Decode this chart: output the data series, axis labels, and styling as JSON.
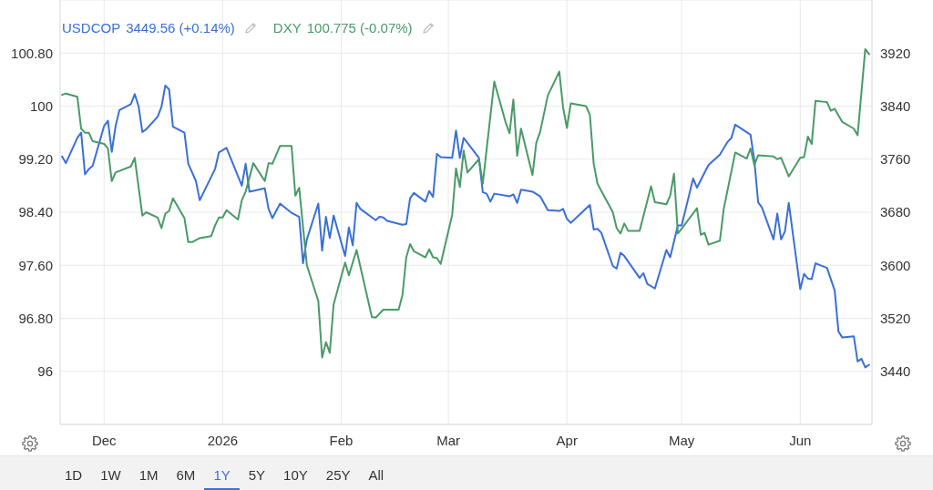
{
  "chart_data": {
    "type": "line",
    "legend": "top left",
    "grid": true,
    "xlim": [
      "2025-11-19T12:00",
      "2026-06-19T18:00"
    ],
    "xticks": [
      {
        "value": "2025-12-01",
        "label": "Dec"
      },
      {
        "value": "2026-01-01",
        "label": "2026"
      },
      {
        "value": "2026-02-01",
        "label": "Feb"
      },
      {
        "value": "2026-03-01",
        "label": "Mar"
      },
      {
        "value": "2026-04-01",
        "label": "Apr"
      },
      {
        "value": "2026-05-01",
        "label": "May"
      },
      {
        "value": "2026-06-01",
        "label": "Jun"
      }
    ],
    "ylim": [
      95.2,
      101.6
    ],
    "yticks": [
      96,
      {
        "value": 96.8,
        "label": "96.80"
      },
      {
        "value": 97.6,
        "label": "97.60"
      },
      {
        "value": 98.4,
        "label": "98.40"
      },
      {
        "value": 99.2,
        "label": "99.20"
      },
      100,
      {
        "value": 100.8,
        "label": "100.80"
      }
    ],
    "y2lim": [
      3360,
      4000
    ],
    "y2ticks": [
      3440,
      3520,
      3600,
      3680,
      3760,
      3840,
      3920
    ],
    "series": [
      {
        "name": "USDCOP",
        "color": "#3a6fd8",
        "axis": "y2",
        "x": [
          "2025-11-20",
          "2025-11-21",
          "2025-11-24",
          "2025-11-25",
          "2025-11-26",
          "2025-11-27",
          "2025-11-28",
          "2025-12-01",
          "2025-12-02",
          "2025-12-03",
          "2025-12-04",
          "2025-12-05",
          "2025-12-08",
          "2025-12-09",
          "2025-12-10",
          "2025-12-11",
          "2025-12-12",
          "2025-12-15",
          "2025-12-16",
          "2025-12-17",
          "2025-12-18",
          "2025-12-19",
          "2025-12-22",
          "2025-12-23",
          "2025-12-25",
          "2025-12-26",
          "2025-12-30",
          "2025-12-31",
          "2026-01-02",
          "2026-01-06",
          "2026-01-07",
          "2026-01-08",
          "2026-01-12",
          "2026-01-13",
          "2026-01-14",
          "2026-01-16",
          "2026-01-19",
          "2026-01-21",
          "2026-01-22",
          "2026-01-23",
          "2026-01-26",
          "2026-01-27",
          "2026-01-28",
          "2026-01-29",
          "2026-01-30",
          "2026-02-02",
          "2026-02-03",
          "2026-02-04",
          "2026-02-05",
          "2026-02-06",
          "2026-02-10",
          "2026-02-11",
          "2026-02-12",
          "2026-02-13",
          "2026-02-17",
          "2026-02-18",
          "2026-02-19",
          "2026-02-20",
          "2026-02-23",
          "2026-02-24",
          "2026-02-25",
          "2026-02-26",
          "2026-02-27",
          "2026-03-02",
          "2026-03-03",
          "2026-03-04",
          "2026-03-05",
          "2026-03-09",
          "2026-03-10",
          "2026-03-11",
          "2026-03-12",
          "2026-03-13",
          "2026-03-17",
          "2026-03-18",
          "2026-03-19",
          "2026-03-20",
          "2026-03-23",
          "2026-03-25",
          "2026-03-27",
          "2026-03-30",
          "2026-03-31",
          "2026-04-01",
          "2026-04-02",
          "2026-04-07",
          "2026-04-08",
          "2026-04-09",
          "2026-04-10",
          "2026-04-13",
          "2026-04-14",
          "2026-04-15",
          "2026-04-16",
          "2026-04-20",
          "2026-04-21",
          "2026-04-22",
          "2026-04-24",
          "2026-04-27",
          "2026-04-28",
          "2026-04-30",
          "2026-05-01",
          "2026-05-04",
          "2026-05-05",
          "2026-05-08",
          "2026-05-11",
          "2026-05-13",
          "2026-05-14",
          "2026-05-15",
          "2026-05-19",
          "2026-05-20",
          "2026-05-21",
          "2026-05-22",
          "2026-05-25",
          "2026-05-26",
          "2026-05-27",
          "2026-05-28",
          "2026-05-29",
          "2026-06-01",
          "2026-06-02",
          "2026-06-03",
          "2026-06-04",
          "2026-06-05",
          "2026-06-08",
          "2026-06-10",
          "2026-06-11",
          "2026-06-12",
          "2026-06-15",
          "2026-06-16",
          "2026-06-17",
          "2026-06-18",
          "2026-06-19"
        ],
        "values": [
          3764,
          3754,
          3792,
          3800,
          3737,
          3745,
          3750,
          3810,
          3818,
          3771,
          3810,
          3834,
          3843,
          3858,
          3840,
          3801,
          3805,
          3824,
          3839,
          3871,
          3865,
          3809,
          3800,
          3753,
          3727,
          3698,
          3745,
          3770,
          3777,
          3720,
          3753,
          3711,
          3716,
          3685,
          3671,
          3693,
          3679,
          3673,
          3603,
          3639,
          3693,
          3622,
          3673,
          3641,
          3675,
          3614,
          3657,
          3630,
          3694,
          3685,
          3668,
          3673,
          3672,
          3667,
          3661,
          3662,
          3701,
          3709,
          3696,
          3712,
          3703,
          3768,
          3763,
          3762,
          3803,
          3762,
          3792,
          3762,
          3710,
          3708,
          3696,
          3708,
          3704,
          3707,
          3694,
          3714,
          3711,
          3704,
          3683,
          3682,
          3685,
          3670,
          3664,
          3691,
          3654,
          3655,
          3649,
          3599,
          3595,
          3619,
          3614,
          3581,
          3588,
          3572,
          3565,
          3623,
          3612,
          3660,
          3660,
          3731,
          3717,
          3751,
          3767,
          3786,
          3792,
          3812,
          3797,
          3758,
          3695,
          3687,
          3639,
          3678,
          3639,
          3651,
          3694,
          3564,
          3587,
          3580,
          3579,
          3603,
          3596,
          3562,
          3500,
          3491,
          3493,
          3455,
          3459,
          3446,
          3450
        ]
      },
      {
        "name": "DXY",
        "color": "#4a9a66",
        "x": [
          "2025-11-20",
          "2025-11-21",
          "2025-11-24",
          "2025-11-25",
          "2025-11-26",
          "2025-11-27",
          "2025-11-28",
          "2025-12-01",
          "2025-12-02",
          "2025-12-03",
          "2025-12-04",
          "2025-12-08",
          "2025-12-09",
          "2025-12-11",
          "2025-12-12",
          "2025-12-15",
          "2025-12-16",
          "2025-12-17",
          "2025-12-18",
          "2025-12-19",
          "2025-12-22",
          "2025-12-23",
          "2025-12-24",
          "2025-12-26",
          "2025-12-29",
          "2025-12-30",
          "2025-12-31",
          "2026-01-01",
          "2026-01-02",
          "2026-01-05",
          "2026-01-06",
          "2026-01-07",
          "2026-01-09",
          "2026-01-12",
          "2026-01-13",
          "2026-01-14",
          "2026-01-16",
          "2026-01-19",
          "2026-01-20",
          "2026-01-21",
          "2026-01-23",
          "2026-01-26",
          "2026-01-27",
          "2026-01-28",
          "2026-01-29",
          "2026-01-30",
          "2026-02-02",
          "2026-02-03",
          "2026-02-05",
          "2026-02-09",
          "2026-02-10",
          "2026-02-12",
          "2026-02-16",
          "2026-02-17",
          "2026-02-18",
          "2026-02-19",
          "2026-02-20",
          "2026-02-23",
          "2026-02-24",
          "2026-02-25",
          "2026-02-26",
          "2026-02-27",
          "2026-03-02",
          "2026-03-03",
          "2026-03-04",
          "2026-03-05",
          "2026-03-06",
          "2026-03-09",
          "2026-03-10",
          "2026-03-13",
          "2026-03-16",
          "2026-03-17",
          "2026-03-18",
          "2026-03-19",
          "2026-03-20",
          "2026-03-23",
          "2026-03-24",
          "2026-03-25",
          "2026-03-27",
          "2026-03-30",
          "2026-03-31",
          "2026-04-01",
          "2026-04-02",
          "2026-04-06",
          "2026-04-07",
          "2026-04-08",
          "2026-04-09",
          "2026-04-13",
          "2026-04-14",
          "2026-04-15",
          "2026-04-16",
          "2026-04-17",
          "2026-04-20",
          "2026-04-23",
          "2026-04-24",
          "2026-04-27",
          "2026-04-28",
          "2026-04-29",
          "2026-04-30",
          "2026-05-01",
          "2026-05-05",
          "2026-05-06",
          "2026-05-07",
          "2026-05-08",
          "2026-05-11",
          "2026-05-12",
          "2026-05-15",
          "2026-05-18",
          "2026-05-19",
          "2026-05-20",
          "2026-05-21",
          "2026-05-25",
          "2026-05-26",
          "2026-05-27",
          "2026-05-29",
          "2026-06-01",
          "2026-06-02",
          "2026-06-03",
          "2026-06-04",
          "2026-06-05",
          "2026-06-08",
          "2026-06-09",
          "2026-06-10",
          "2026-06-12",
          "2026-06-15",
          "2026-06-16",
          "2026-06-18",
          "2026-06-19"
        ],
        "values": [
          100.17,
          100.19,
          100.14,
          99.66,
          99.6,
          99.6,
          99.47,
          99.43,
          99.36,
          98.87,
          99.0,
          99.09,
          99.22,
          98.35,
          98.4,
          98.32,
          98.16,
          98.38,
          98.42,
          98.61,
          98.31,
          97.95,
          97.95,
          98.01,
          98.04,
          98.2,
          98.32,
          98.32,
          98.43,
          98.29,
          98.58,
          98.71,
          99.14,
          98.87,
          99.14,
          99.13,
          99.4,
          99.4,
          98.65,
          98.77,
          97.6,
          97.06,
          96.21,
          96.44,
          96.28,
          97.01,
          97.64,
          97.45,
          97.83,
          96.82,
          96.81,
          96.93,
          96.93,
          97.15,
          97.72,
          97.92,
          97.81,
          97.72,
          97.84,
          97.72,
          97.71,
          97.62,
          98.36,
          99.06,
          98.78,
          99.33,
          99.0,
          99.2,
          98.83,
          100.37,
          99.75,
          99.59,
          100.1,
          99.25,
          99.66,
          98.96,
          99.45,
          99.61,
          100.16,
          100.52,
          99.98,
          99.67,
          100.04,
          100.0,
          99.87,
          99.13,
          98.83,
          98.4,
          98.16,
          98.08,
          98.23,
          98.12,
          98.12,
          98.79,
          98.55,
          98.52,
          98.65,
          98.98,
          98.08,
          98.15,
          98.46,
          98.06,
          98.09,
          97.91,
          97.97,
          98.45,
          99.3,
          99.21,
          99.36,
          99.11,
          99.26,
          99.24,
          99.2,
          99.22,
          98.94,
          99.22,
          99.23,
          99.54,
          99.43,
          100.08,
          100.06,
          99.93,
          99.96,
          99.76,
          99.66,
          99.56,
          100.86,
          100.78
        ]
      }
    ],
    "annotations": [
      "3449.56 (+0.14%)",
      "100.775 (-0.07%)",
      "1D",
      "1W",
      "1M",
      "6M",
      "1Y",
      "5Y",
      "10Y",
      "25Y",
      "All"
    ]
  }
}
